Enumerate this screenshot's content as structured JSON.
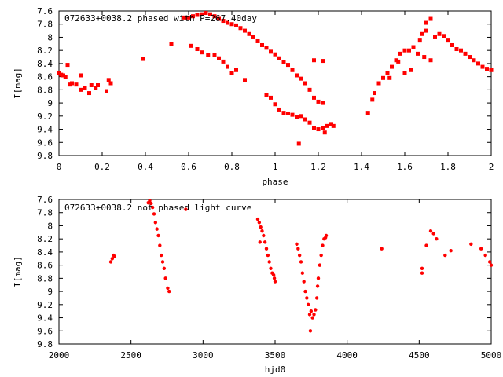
{
  "chart_data": [
    {
      "type": "scatter",
      "title": "072633+0038.2 phased with P=267.40day",
      "xlabel": "phase",
      "ylabel": "I[mag]",
      "xlim": [
        0,
        2
      ],
      "ylim": [
        7.6,
        9.8
      ],
      "y_inverted": true,
      "xticks": [
        "0",
        "0.2",
        "0.4",
        "0.6",
        "0.8",
        "1",
        "1.2",
        "1.4",
        "1.6",
        "1.8",
        "2"
      ],
      "yticks": [
        "7.6",
        "7.8",
        "8",
        "8.2",
        "8.4",
        "8.6",
        "8.8",
        "9",
        "9.2",
        "9.4",
        "9.6",
        "9.8"
      ],
      "grid": false,
      "marker_color": "#ff0000",
      "series": [
        {
          "points": [
            [
              0.0,
              8.55
            ],
            [
              0.01,
              8.57
            ],
            [
              0.02,
              8.58
            ],
            [
              0.03,
              8.6
            ],
            [
              0.04,
              8.42
            ],
            [
              0.05,
              8.72
            ],
            [
              0.06,
              8.7
            ],
            [
              0.08,
              8.72
            ],
            [
              0.1,
              8.58
            ],
            [
              0.1,
              8.8
            ],
            [
              0.12,
              8.77
            ],
            [
              0.14,
              8.85
            ],
            [
              0.15,
              8.73
            ],
            [
              0.17,
              8.77
            ],
            [
              0.18,
              8.73
            ],
            [
              0.22,
              8.82
            ],
            [
              0.23,
              8.65
            ],
            [
              0.24,
              8.7
            ],
            [
              0.39,
              8.33
            ],
            [
              0.52,
              8.1
            ],
            [
              0.61,
              8.13
            ],
            [
              0.64,
              8.18
            ],
            [
              0.66,
              8.23
            ],
            [
              0.69,
              8.27
            ],
            [
              0.72,
              8.27
            ],
            [
              0.74,
              8.32
            ],
            [
              0.76,
              8.37
            ],
            [
              0.78,
              8.45
            ],
            [
              0.8,
              8.55
            ],
            [
              0.82,
              8.5
            ],
            [
              0.86,
              8.65
            ],
            [
              0.58,
              7.7
            ],
            [
              0.6,
              7.7
            ],
            [
              0.62,
              7.68
            ],
            [
              0.64,
              7.66
            ],
            [
              0.66,
              7.65
            ],
            [
              0.68,
              7.63
            ],
            [
              0.7,
              7.65
            ],
            [
              0.72,
              7.68
            ],
            [
              0.74,
              7.72
            ],
            [
              0.76,
              7.75
            ],
            [
              0.78,
              7.78
            ],
            [
              0.8,
              7.8
            ],
            [
              0.82,
              7.82
            ],
            [
              0.84,
              7.86
            ],
            [
              0.86,
              7.9
            ],
            [
              0.88,
              7.95
            ],
            [
              0.9,
              8.0
            ],
            [
              0.92,
              8.06
            ],
            [
              0.94,
              8.12
            ],
            [
              0.96,
              8.16
            ],
            [
              0.98,
              8.22
            ],
            [
              1.0,
              8.26
            ],
            [
              1.02,
              8.32
            ],
            [
              1.04,
              8.38
            ],
            [
              1.06,
              8.42
            ],
            [
              1.08,
              8.5
            ],
            [
              1.1,
              8.58
            ],
            [
              1.12,
              8.63
            ],
            [
              1.14,
              8.7
            ],
            [
              1.16,
              8.8
            ],
            [
              1.18,
              8.92
            ],
            [
              1.2,
              8.98
            ],
            [
              1.22,
              9.0
            ],
            [
              1.18,
              8.35
            ],
            [
              1.22,
              8.36
            ],
            [
              0.96,
              8.88
            ],
            [
              0.98,
              8.92
            ],
            [
              1.0,
              9.02
            ],
            [
              1.02,
              9.1
            ],
            [
              1.04,
              9.15
            ],
            [
              1.06,
              9.16
            ],
            [
              1.08,
              9.18
            ],
            [
              1.1,
              9.22
            ],
            [
              1.11,
              9.62
            ],
            [
              1.12,
              9.2
            ],
            [
              1.14,
              9.25
            ],
            [
              1.16,
              9.3
            ],
            [
              1.18,
              9.38
            ],
            [
              1.2,
              9.4
            ],
            [
              1.22,
              9.38
            ],
            [
              1.23,
              9.45
            ],
            [
              1.24,
              9.35
            ],
            [
              1.26,
              9.32
            ],
            [
              1.27,
              9.35
            ],
            [
              1.43,
              9.15
            ],
            [
              1.45,
              8.95
            ],
            [
              1.46,
              8.85
            ],
            [
              1.48,
              8.7
            ],
            [
              1.5,
              8.62
            ],
            [
              1.52,
              8.55
            ],
            [
              1.54,
              8.45
            ],
            [
              1.56,
              8.35
            ],
            [
              1.58,
              8.25
            ],
            [
              1.6,
              8.2
            ],
            [
              1.62,
              8.2
            ],
            [
              1.64,
              8.15
            ],
            [
              1.6,
              8.55
            ],
            [
              1.63,
              8.5
            ],
            [
              1.66,
              8.25
            ],
            [
              1.67,
              8.05
            ],
            [
              1.68,
              7.95
            ],
            [
              1.7,
              7.9
            ],
            [
              1.7,
              7.78
            ],
            [
              1.72,
              7.72
            ],
            [
              1.72,
              8.35
            ],
            [
              1.74,
              8.0
            ],
            [
              1.76,
              7.95
            ],
            [
              1.78,
              7.98
            ],
            [
              1.8,
              8.05
            ],
            [
              1.82,
              8.12
            ],
            [
              1.84,
              8.18
            ],
            [
              1.86,
              8.2
            ],
            [
              1.88,
              8.25
            ],
            [
              1.9,
              8.3
            ],
            [
              1.92,
              8.35
            ],
            [
              1.94,
              8.4
            ],
            [
              1.96,
              8.45
            ],
            [
              1.98,
              8.48
            ],
            [
              2.0,
              8.5
            ],
            [
              1.53,
              8.62
            ],
            [
              1.57,
              8.37
            ],
            [
              1.69,
              8.3
            ]
          ]
        }
      ]
    },
    {
      "type": "scatter",
      "title": "072633+0038.2 not phased light curve",
      "xlabel": "hjd0",
      "ylabel": "I[mag]",
      "xlim": [
        2000,
        5000
      ],
      "ylim": [
        7.6,
        9.8
      ],
      "y_inverted": true,
      "xticks": [
        "2000",
        "2500",
        "3000",
        "3500",
        "4000",
        "4500",
        "5000"
      ],
      "yticks": [
        "7.6",
        "7.8",
        "8",
        "8.2",
        "8.4",
        "8.6",
        "8.8",
        "9",
        "9.2",
        "9.4",
        "9.6",
        "9.8"
      ],
      "grid": false,
      "marker_color": "#ff0000",
      "series": [
        {
          "points": [
            [
              2360,
              8.55
            ],
            [
              2370,
              8.5
            ],
            [
              2380,
              8.45
            ],
            [
              2385,
              8.47
            ],
            [
              2620,
              7.65
            ],
            [
              2630,
              7.62
            ],
            [
              2640,
              7.66
            ],
            [
              2650,
              7.72
            ],
            [
              2660,
              7.82
            ],
            [
              2670,
              7.95
            ],
            [
              2680,
              8.05
            ],
            [
              2690,
              8.15
            ],
            [
              2700,
              8.3
            ],
            [
              2710,
              8.45
            ],
            [
              2720,
              8.55
            ],
            [
              2730,
              8.65
            ],
            [
              2740,
              8.8
            ],
            [
              2755,
              8.95
            ],
            [
              2765,
              9.0
            ],
            [
              2880,
              7.75
            ],
            [
              3380,
              7.9
            ],
            [
              3390,
              7.95
            ],
            [
              3395,
              8.25
            ],
            [
              3400,
              8.02
            ],
            [
              3410,
              8.08
            ],
            [
              3420,
              8.15
            ],
            [
              3430,
              8.25
            ],
            [
              3440,
              8.35
            ],
            [
              3450,
              8.45
            ],
            [
              3460,
              8.55
            ],
            [
              3470,
              8.65
            ],
            [
              3480,
              8.72
            ],
            [
              3490,
              8.75
            ],
            [
              3495,
              8.8
            ],
            [
              3500,
              8.85
            ],
            [
              3650,
              8.28
            ],
            [
              3660,
              8.35
            ],
            [
              3670,
              8.45
            ],
            [
              3680,
              8.55
            ],
            [
              3690,
              8.72
            ],
            [
              3700,
              8.85
            ],
            [
              3710,
              9.0
            ],
            [
              3720,
              9.1
            ],
            [
              3730,
              9.2
            ],
            [
              3740,
              9.35
            ],
            [
              3745,
              9.6
            ],
            [
              3750,
              9.3
            ],
            [
              3760,
              9.4
            ],
            [
              3770,
              9.35
            ],
            [
              3780,
              9.28
            ],
            [
              3790,
              9.1
            ],
            [
              3795,
              8.92
            ],
            [
              3800,
              8.8
            ],
            [
              3810,
              8.6
            ],
            [
              3820,
              8.45
            ],
            [
              3830,
              8.3
            ],
            [
              3840,
              8.2
            ],
            [
              3850,
              8.18
            ],
            [
              3855,
              8.15
            ],
            [
              4240,
              8.35
            ],
            [
              4520,
              8.65
            ],
            [
              4520,
              8.72
            ],
            [
              4550,
              8.3
            ],
            [
              4580,
              8.08
            ],
            [
              4600,
              8.12
            ],
            [
              4620,
              8.2
            ],
            [
              4680,
              8.45
            ],
            [
              4720,
              8.38
            ],
            [
              4860,
              8.28
            ],
            [
              4930,
              8.35
            ],
            [
              4960,
              8.45
            ],
            [
              4990,
              8.55
            ],
            [
              5000,
              8.6
            ]
          ]
        }
      ]
    }
  ]
}
